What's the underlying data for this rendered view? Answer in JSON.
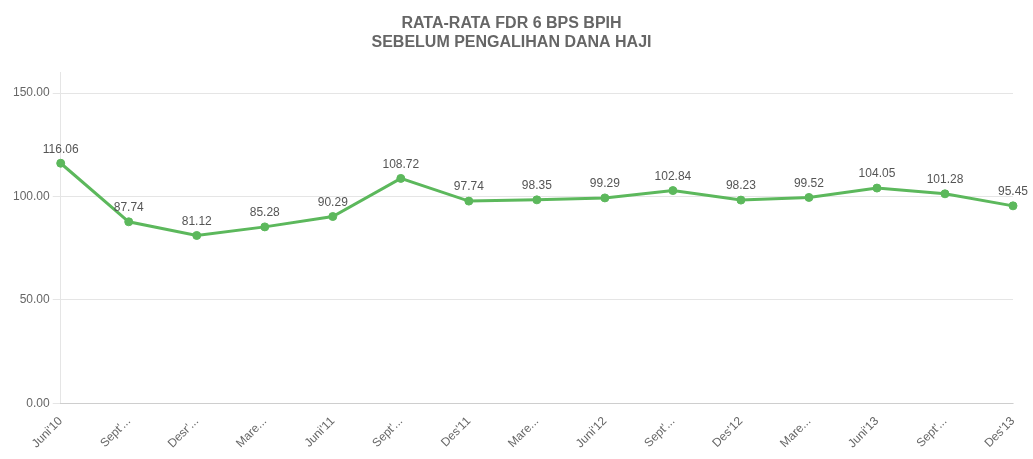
{
  "chart_data": {
    "type": "line",
    "title": "RATA-RATA FDR 6 BPS BPIH\nSEBELUM PENGALIHAN DANA HAJI",
    "categories": [
      "Juni'10",
      "Sept'...",
      "Desr'...",
      "Mare...",
      "Juni'11",
      "Sept'...",
      "Des'11",
      "Mare...",
      "Juni'12",
      "Sept'...",
      "Des'12",
      "Mare...",
      "Juni'13",
      "Sept'...",
      "Des'13"
    ],
    "values": [
      116.06,
      87.74,
      81.12,
      85.28,
      90.29,
      108.72,
      97.74,
      98.35,
      99.29,
      102.84,
      98.23,
      99.52,
      104.05,
      101.28,
      95.45
    ],
    "color": "#5cb85c",
    "marker": "circle",
    "ylim": [
      0,
      160
    ],
    "yticks": [
      {
        "value": 0,
        "label": "0.00"
      },
      {
        "value": 50,
        "label": "50.00"
      },
      {
        "value": 100,
        "label": "100.00"
      },
      {
        "value": 150,
        "label": "150.00"
      }
    ],
    "grid": "y",
    "data_labels": true
  }
}
